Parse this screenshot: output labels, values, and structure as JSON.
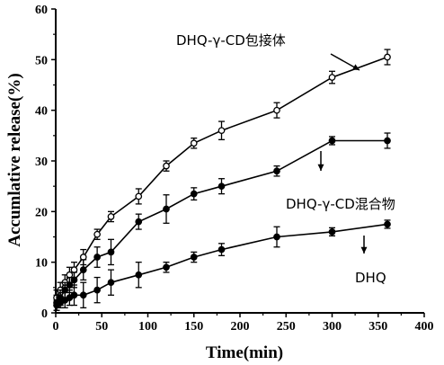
{
  "chart_data": {
    "type": "line",
    "title": "",
    "xlabel": "Time(min)",
    "ylabel": "Accumlative release(%)",
    "xlim": [
      0,
      400
    ],
    "ylim": [
      0,
      60
    ],
    "xticks": [
      0,
      50,
      100,
      150,
      200,
      250,
      300,
      350,
      400
    ],
    "yticks": [
      0,
      10,
      20,
      30,
      40,
      50,
      60
    ],
    "grid": false,
    "legend": "none",
    "series": [
      {
        "name": "DHQ-γ-CD包接体",
        "marker": "open-circle",
        "x": [
          1,
          5,
          10,
          15,
          20,
          30,
          45,
          60,
          90,
          120,
          150,
          180,
          240,
          300,
          360
        ],
        "y": [
          3.0,
          4.5,
          6.0,
          7.5,
          8.5,
          11.0,
          15.5,
          19.0,
          23.0,
          29.0,
          33.5,
          36.0,
          40.0,
          46.5,
          50.5
        ],
        "err": [
          1.5,
          1.5,
          1.5,
          1.5,
          1.5,
          1.5,
          1.0,
          1.0,
          1.5,
          1.0,
          1.0,
          1.8,
          1.5,
          1.2,
          1.5
        ]
      },
      {
        "name": "DHQ-γ-CD混合物",
        "marker": "filled-circle",
        "x": [
          1,
          5,
          10,
          15,
          20,
          30,
          45,
          60,
          90,
          120,
          150,
          180,
          240,
          300,
          360
        ],
        "y": [
          2.0,
          3.0,
          4.5,
          5.5,
          6.5,
          8.5,
          11.0,
          12.0,
          18.0,
          20.5,
          23.5,
          25.0,
          28.0,
          34.0,
          34.0
        ],
        "err": [
          1.5,
          1.5,
          1.5,
          1.5,
          1.5,
          2.0,
          2.0,
          2.5,
          1.5,
          2.8,
          1.2,
          1.5,
          1.0,
          0.8,
          1.5
        ]
      },
      {
        "name": "DHQ",
        "marker": "filled-circle",
        "x": [
          1,
          5,
          10,
          15,
          20,
          30,
          45,
          60,
          90,
          120,
          150,
          180,
          240,
          300,
          360
        ],
        "y": [
          1.5,
          2.0,
          2.5,
          3.0,
          3.5,
          3.5,
          4.5,
          6.0,
          7.5,
          9.0,
          11.0,
          12.5,
          15.0,
          16.0,
          17.5
        ],
        "err": [
          1.0,
          1.0,
          1.5,
          1.5,
          2.0,
          2.5,
          2.5,
          2.5,
          2.5,
          1.0,
          1.0,
          1.2,
          2.0,
          0.8,
          0.8
        ]
      }
    ],
    "annotations": [
      "DHQ-γ-CD包接体",
      "DHQ-γ-CD混合物",
      "DHQ"
    ]
  }
}
